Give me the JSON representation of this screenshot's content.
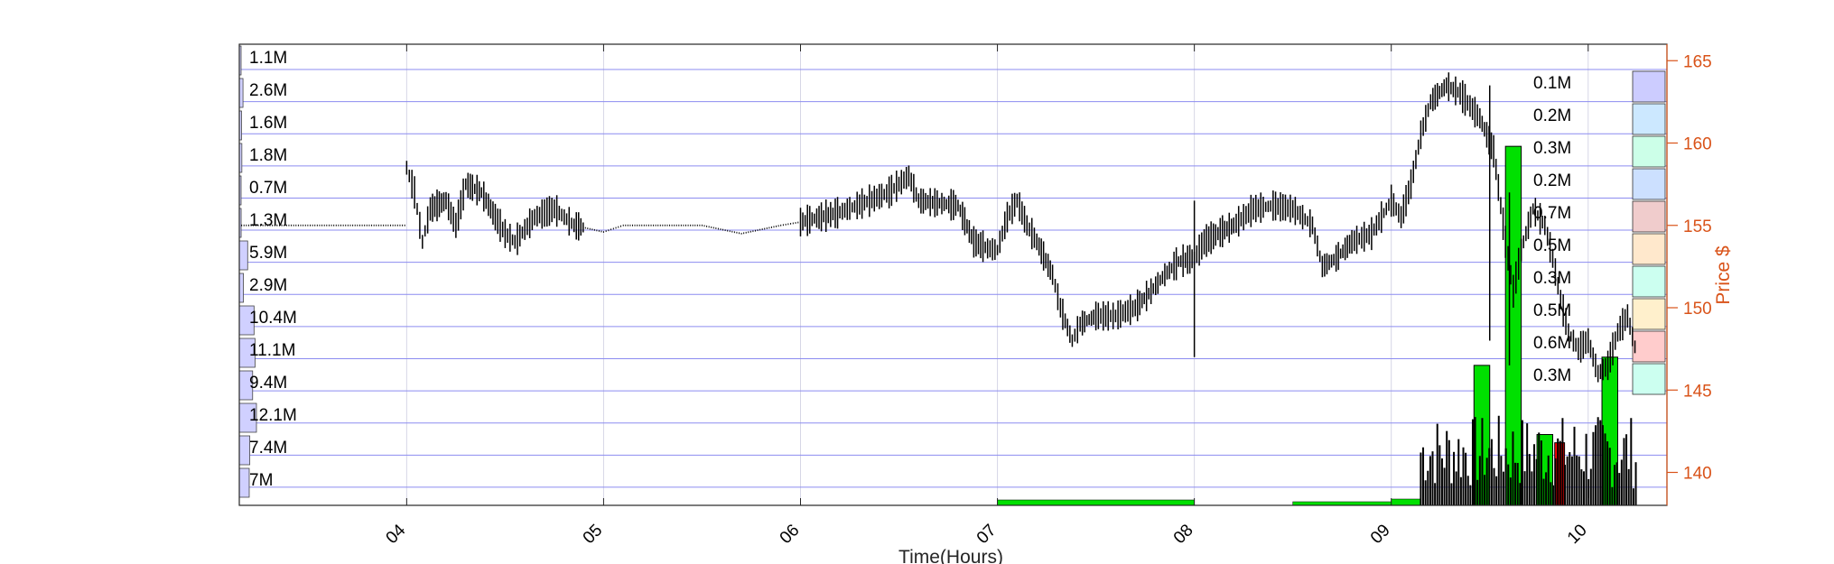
{
  "chart_data": {
    "type": "candlestick",
    "title": "",
    "xlabel": "Time(Hours)",
    "ylabel": "Price $",
    "ylim": [
      138,
      166
    ],
    "xlim": [
      3.15,
      10.4
    ],
    "x_ticks": [
      {
        "value": 4,
        "label": "04"
      },
      {
        "value": 5,
        "label": "05"
      },
      {
        "value": 6,
        "label": "06"
      },
      {
        "value": 7,
        "label": "07"
      },
      {
        "value": 8,
        "label": "08"
      },
      {
        "value": 9,
        "label": "09"
      },
      {
        "value": 10,
        "label": "10"
      }
    ],
    "y_ticks": [
      140,
      145,
      150,
      155,
      160,
      165
    ],
    "price_path": [
      [
        3.15,
        155.0
      ],
      [
        3.99,
        155.0
      ],
      [
        4.0,
        158.5
      ],
      [
        4.04,
        157.0
      ],
      [
        4.08,
        154.0
      ],
      [
        4.12,
        156.0
      ],
      [
        4.2,
        156.5
      ],
      [
        4.25,
        155.0
      ],
      [
        4.3,
        157.5
      ],
      [
        4.38,
        157.0
      ],
      [
        4.45,
        155.5
      ],
      [
        4.5,
        154.5
      ],
      [
        4.55,
        154.0
      ],
      [
        4.65,
        155.5
      ],
      [
        4.75,
        156.0
      ],
      [
        4.85,
        155.0
      ],
      [
        5.0,
        154.6
      ],
      [
        5.1,
        155.0
      ],
      [
        5.3,
        155.0
      ],
      [
        5.5,
        155.0
      ],
      [
        5.7,
        154.5
      ],
      [
        5.9,
        155.0
      ],
      [
        6.0,
        155.2
      ],
      [
        6.2,
        155.8
      ],
      [
        6.35,
        156.5
      ],
      [
        6.45,
        157.0
      ],
      [
        6.55,
        158.0
      ],
      [
        6.6,
        156.5
      ],
      [
        6.8,
        156.2
      ],
      [
        6.88,
        154.0
      ],
      [
        6.95,
        153.6
      ],
      [
        7.0,
        153.5
      ],
      [
        7.05,
        155.5
      ],
      [
        7.1,
        156.5
      ],
      [
        7.15,
        155.0
      ],
      [
        7.2,
        154.0
      ],
      [
        7.28,
        152.0
      ],
      [
        7.32,
        150.0
      ],
      [
        7.38,
        148.0
      ],
      [
        7.42,
        149.0
      ],
      [
        7.5,
        149.5
      ],
      [
        7.6,
        149.5
      ],
      [
        7.7,
        150.0
      ],
      [
        7.78,
        151.0
      ],
      [
        7.85,
        152.0
      ],
      [
        7.92,
        152.8
      ],
      [
        8.0,
        153.0
      ],
      [
        8.05,
        154.0
      ],
      [
        8.12,
        154.5
      ],
      [
        8.2,
        155.0
      ],
      [
        8.3,
        156.0
      ],
      [
        8.4,
        156.2
      ],
      [
        8.5,
        156.0
      ],
      [
        8.6,
        155.0
      ],
      [
        8.65,
        152.5
      ],
      [
        8.72,
        153.0
      ],
      [
        8.8,
        154.0
      ],
      [
        8.9,
        154.5
      ],
      [
        9.0,
        156.5
      ],
      [
        9.05,
        155.5
      ],
      [
        9.1,
        157.5
      ],
      [
        9.15,
        160.5
      ],
      [
        9.2,
        162.5
      ],
      [
        9.28,
        163.5
      ],
      [
        9.35,
        163.0
      ],
      [
        9.45,
        161.5
      ],
      [
        9.52,
        159.5
      ],
      [
        9.58,
        154.0
      ],
      [
        9.62,
        151.0
      ],
      [
        9.66,
        153.5
      ],
      [
        9.72,
        156.0
      ],
      [
        9.78,
        155.0
      ],
      [
        9.82,
        153.0
      ],
      [
        9.86,
        150.5
      ],
      [
        9.9,
        148.5
      ],
      [
        9.95,
        147.5
      ],
      [
        10.0,
        148.0
      ],
      [
        10.05,
        146.0
      ],
      [
        10.1,
        146.5
      ],
      [
        10.15,
        148.5
      ],
      [
        10.2,
        149.5
      ],
      [
        10.25,
        147.0
      ]
    ],
    "spikes": [
      {
        "x": 8.0,
        "low": 147.0,
        "high": 156.5
      },
      {
        "x": 9.5,
        "low": 148.0,
        "high": 163.5
      },
      {
        "x": 9.6,
        "low": 146.5,
        "high": 157.0
      }
    ],
    "volume_profile": {
      "left_labels": [
        "1.1M",
        "2.6M",
        "1.6M",
        "1.8M",
        "0.7M",
        "1.3M",
        "5.9M",
        "2.9M",
        "10.4M",
        "11.1M",
        "9.4M",
        "12.1M",
        "7.4M",
        "7M"
      ],
      "left_values": [
        1.1,
        2.6,
        1.6,
        1.8,
        0.7,
        1.3,
        5.9,
        2.9,
        10.4,
        11.1,
        9.4,
        12.1,
        7.4,
        7.0
      ],
      "right_labels": [
        "0.1M",
        "0.2M",
        "0.3M",
        "0.2M",
        "0.7M",
        "0.5M",
        "0.3M",
        "0.5M",
        "0.6M",
        "0.3M"
      ],
      "right_values": [
        0.1,
        0.2,
        0.3,
        0.2,
        0.7,
        0.5,
        0.3,
        0.5,
        0.6,
        0.3
      ],
      "right_colors": [
        "#ccccff",
        "#cce8ff",
        "#ccffe8",
        "#cce0ff",
        "#f0cccc",
        "#ffe8cc",
        "#ccfff0",
        "#fff0cc",
        "#ffcccc",
        "#ccfff0"
      ]
    },
    "volume_bars": {
      "big_green": [
        {
          "x0": 9.42,
          "x1": 9.5,
          "height": 146.5
        },
        {
          "x0": 9.58,
          "x1": 9.66,
          "height": 159.8
        },
        {
          "x0": 10.07,
          "x1": 10.15,
          "height": 147.0
        }
      ],
      "medium_green": [
        {
          "x0": 9.74,
          "x1": 9.82,
          "height": 142.3
        }
      ],
      "red": [
        {
          "x0": 9.83,
          "x1": 9.88,
          "height": 141.8
        }
      ]
    },
    "colors": {
      "grid": "#d6d6e6",
      "bands": "#8c8cf0",
      "price_axis": "#d95319",
      "candles": "#000000",
      "volume_green": "#00e000",
      "volume_red": "#ff0000",
      "left_profile": "#d0d0ff"
    }
  }
}
